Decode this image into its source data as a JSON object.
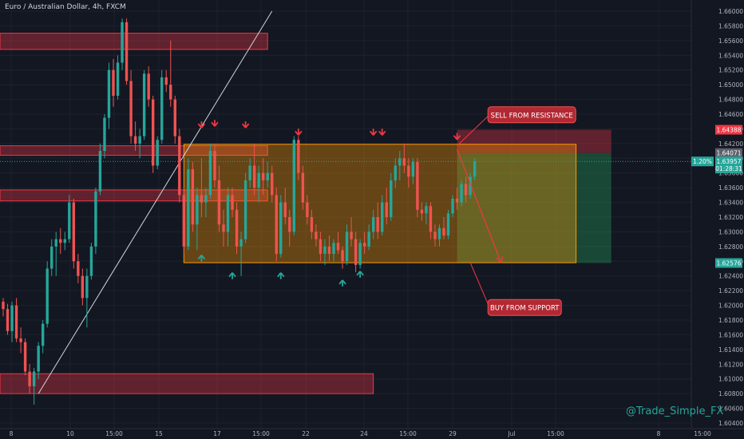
{
  "header": {
    "title": "Euro / Australian Dollar, 4h, FXCM"
  },
  "watermark": "@Trade_Simple_FX",
  "chart_data": {
    "type": "candlestick",
    "title": "Euro / Australian Dollar, 4h, FXCM",
    "ylim": [
      1.604,
      1.66
    ],
    "y_ticks": [
      "1.66000",
      "1.65800",
      "1.65600",
      "1.65400",
      "1.65200",
      "1.65000",
      "1.64800",
      "1.64600",
      "1.64400",
      "1.64200",
      "1.64000",
      "1.63800",
      "1.63600",
      "1.63400",
      "1.63200",
      "1.63000",
      "1.62800",
      "1.62600",
      "1.62400",
      "1.62200",
      "1.62000",
      "1.61800",
      "1.61600",
      "1.61400",
      "1.61200",
      "1.61000",
      "1.60800",
      "1.60600",
      "1.60400"
    ],
    "x_ticks": [
      "8",
      "10",
      "15:00",
      "15",
      "17",
      "15:00",
      "22",
      "24",
      "15:00",
      "29",
      "Jul",
      "15:00",
      "8",
      "15:00"
    ],
    "price_labels": [
      {
        "text": "1.64388",
        "price": 1.64388,
        "color": "#f23645"
      },
      {
        "text": "1.64071",
        "price": 1.64071,
        "color": "#5d606b"
      },
      {
        "text": "1.63957",
        "price": 1.63957,
        "color": "#26a69a"
      },
      {
        "text": "01:28:31",
        "price": 1.6386,
        "color": "#26a69a"
      },
      {
        "text": "1.62576",
        "price": 1.62576,
        "color": "#26a69a"
      }
    ],
    "pct_label": "1.20%",
    "zones": [
      {
        "name": "resistance-zone-top",
        "y1": 1.657,
        "y2": 1.6548,
        "x1": 0,
        "x2": 60
      },
      {
        "name": "resistance-zone-mid",
        "y1": 1.6417,
        "y2": 1.6404,
        "x1": 0,
        "x2": 60
      },
      {
        "name": "resistance-zone-low",
        "y1": 1.6357,
        "y2": 1.6342,
        "x1": 0,
        "x2": 60
      },
      {
        "name": "support-zone-bottom",
        "y1": 1.6107,
        "y2": 1.608,
        "x1": 0,
        "x2": 84
      }
    ],
    "range_box": {
      "y1": 1.6419,
      "y2": 1.6258,
      "x1": 41,
      "x2": 130
    },
    "trade": {
      "entry": 1.64071,
      "stop": 1.64388,
      "target": 1.62576,
      "x1": 103,
      "x2": 138
    },
    "annotations": [
      {
        "text": "SELL FROM RESISTANCE",
        "anchor_x": 103,
        "anchor_y": 1.6417,
        "box_x": 110,
        "box_y": 1.647
      },
      {
        "text": "BUY FROM SUPPORT",
        "anchor_x": 106,
        "anchor_y": 1.6258,
        "box_x": 110,
        "box_y": 1.6208
      }
    ],
    "down_arrows": [
      [
        45,
        1.6448
      ],
      [
        48,
        1.645
      ],
      [
        55,
        1.6448
      ],
      [
        67,
        1.6438
      ],
      [
        84,
        1.6438
      ],
      [
        86,
        1.6438
      ],
      [
        103,
        1.6432
      ]
    ],
    "up_arrows": [
      [
        45,
        1.6264
      ],
      [
        52,
        1.624
      ],
      [
        63,
        1.624
      ],
      [
        77,
        1.623
      ],
      [
        81,
        1.6242
      ]
    ],
    "trend_line": [
      [
        8,
        1.608
      ],
      [
        61,
        1.66
      ]
    ],
    "candles": [
      {
        "o": 1.6205,
        "h": 1.621,
        "l": 1.6185,
        "c": 1.6195
      },
      {
        "o": 1.6195,
        "h": 1.6202,
        "l": 1.616,
        "c": 1.6165
      },
      {
        "o": 1.6165,
        "h": 1.6205,
        "l": 1.615,
        "c": 1.62
      },
      {
        "o": 1.62,
        "h": 1.621,
        "l": 1.615,
        "c": 1.6155
      },
      {
        "o": 1.6155,
        "h": 1.617,
        "l": 1.6135,
        "c": 1.615
      },
      {
        "o": 1.615,
        "h": 1.6155,
        "l": 1.6105,
        "c": 1.611
      },
      {
        "o": 1.611,
        "h": 1.612,
        "l": 1.608,
        "c": 1.609
      },
      {
        "o": 1.609,
        "h": 1.6115,
        "l": 1.6065,
        "c": 1.611
      },
      {
        "o": 1.611,
        "h": 1.615,
        "l": 1.61,
        "c": 1.6145
      },
      {
        "o": 1.6145,
        "h": 1.618,
        "l": 1.6135,
        "c": 1.6175
      },
      {
        "o": 1.6175,
        "h": 1.626,
        "l": 1.617,
        "c": 1.625
      },
      {
        "o": 1.625,
        "h": 1.629,
        "l": 1.624,
        "c": 1.628
      },
      {
        "o": 1.628,
        "h": 1.63,
        "l": 1.624,
        "c": 1.629
      },
      {
        "o": 1.629,
        "h": 1.6305,
        "l": 1.627,
        "c": 1.6285
      },
      {
        "o": 1.6285,
        "h": 1.63,
        "l": 1.6275,
        "c": 1.629
      },
      {
        "o": 1.629,
        "h": 1.635,
        "l": 1.6285,
        "c": 1.634
      },
      {
        "o": 1.634,
        "h": 1.6345,
        "l": 1.625,
        "c": 1.626
      },
      {
        "o": 1.626,
        "h": 1.627,
        "l": 1.623,
        "c": 1.624
      },
      {
        "o": 1.624,
        "h": 1.625,
        "l": 1.62,
        "c": 1.621
      },
      {
        "o": 1.621,
        "h": 1.625,
        "l": 1.617,
        "c": 1.624
      },
      {
        "o": 1.624,
        "h": 1.6285,
        "l": 1.6235,
        "c": 1.628
      },
      {
        "o": 1.628,
        "h": 1.636,
        "l": 1.627,
        "c": 1.6355
      },
      {
        "o": 1.6355,
        "h": 1.642,
        "l": 1.635,
        "c": 1.641
      },
      {
        "o": 1.641,
        "h": 1.646,
        "l": 1.64,
        "c": 1.6455
      },
      {
        "o": 1.6455,
        "h": 1.653,
        "l": 1.644,
        "c": 1.652
      },
      {
        "o": 1.652,
        "h": 1.6535,
        "l": 1.647,
        "c": 1.6485
      },
      {
        "o": 1.6485,
        "h": 1.654,
        "l": 1.648,
        "c": 1.653
      },
      {
        "o": 1.653,
        "h": 1.659,
        "l": 1.652,
        "c": 1.6585
      },
      {
        "o": 1.6585,
        "h": 1.659,
        "l": 1.65,
        "c": 1.6505
      },
      {
        "o": 1.6505,
        "h": 1.652,
        "l": 1.642,
        "c": 1.643
      },
      {
        "o": 1.643,
        "h": 1.645,
        "l": 1.641,
        "c": 1.642
      },
      {
        "o": 1.642,
        "h": 1.644,
        "l": 1.64,
        "c": 1.643
      },
      {
        "o": 1.643,
        "h": 1.652,
        "l": 1.6425,
        "c": 1.6515
      },
      {
        "o": 1.6515,
        "h": 1.6525,
        "l": 1.647,
        "c": 1.648
      },
      {
        "o": 1.648,
        "h": 1.6485,
        "l": 1.638,
        "c": 1.639
      },
      {
        "o": 1.639,
        "h": 1.643,
        "l": 1.6385,
        "c": 1.6425
      },
      {
        "o": 1.6425,
        "h": 1.652,
        "l": 1.642,
        "c": 1.651
      },
      {
        "o": 1.651,
        "h": 1.652,
        "l": 1.649,
        "c": 1.65
      },
      {
        "o": 1.65,
        "h": 1.656,
        "l": 1.647,
        "c": 1.648
      },
      {
        "o": 1.648,
        "h": 1.6485,
        "l": 1.642,
        "c": 1.643
      },
      {
        "o": 1.643,
        "h": 1.644,
        "l": 1.634,
        "c": 1.635
      },
      {
        "o": 1.635,
        "h": 1.636,
        "l": 1.627,
        "c": 1.628
      },
      {
        "o": 1.628,
        "h": 1.64,
        "l": 1.6275,
        "c": 1.6385
      },
      {
        "o": 1.6385,
        "h": 1.6395,
        "l": 1.63,
        "c": 1.631
      },
      {
        "o": 1.631,
        "h": 1.636,
        "l": 1.6275,
        "c": 1.635
      },
      {
        "o": 1.635,
        "h": 1.64,
        "l": 1.632,
        "c": 1.634
      },
      {
        "o": 1.634,
        "h": 1.636,
        "l": 1.632,
        "c": 1.635
      },
      {
        "o": 1.635,
        "h": 1.642,
        "l": 1.6345,
        "c": 1.641
      },
      {
        "o": 1.641,
        "h": 1.642,
        "l": 1.636,
        "c": 1.637
      },
      {
        "o": 1.637,
        "h": 1.639,
        "l": 1.63,
        "c": 1.631
      },
      {
        "o": 1.631,
        "h": 1.633,
        "l": 1.628,
        "c": 1.63
      },
      {
        "o": 1.63,
        "h": 1.636,
        "l": 1.628,
        "c": 1.635
      },
      {
        "o": 1.635,
        "h": 1.636,
        "l": 1.632,
        "c": 1.633
      },
      {
        "o": 1.633,
        "h": 1.634,
        "l": 1.627,
        "c": 1.628
      },
      {
        "o": 1.628,
        "h": 1.63,
        "l": 1.624,
        "c": 1.629
      },
      {
        "o": 1.629,
        "h": 1.638,
        "l": 1.6285,
        "c": 1.637
      },
      {
        "o": 1.637,
        "h": 1.64,
        "l": 1.636,
        "c": 1.639
      },
      {
        "o": 1.639,
        "h": 1.642,
        "l": 1.635,
        "c": 1.636
      },
      {
        "o": 1.636,
        "h": 1.639,
        "l": 1.634,
        "c": 1.638
      },
      {
        "o": 1.638,
        "h": 1.64,
        "l": 1.635,
        "c": 1.637
      },
      {
        "o": 1.637,
        "h": 1.6395,
        "l": 1.636,
        "c": 1.638
      },
      {
        "o": 1.638,
        "h": 1.639,
        "l": 1.634,
        "c": 1.635
      },
      {
        "o": 1.635,
        "h": 1.636,
        "l": 1.626,
        "c": 1.627
      },
      {
        "o": 1.627,
        "h": 1.635,
        "l": 1.6265,
        "c": 1.634
      },
      {
        "o": 1.634,
        "h": 1.636,
        "l": 1.631,
        "c": 1.632
      },
      {
        "o": 1.632,
        "h": 1.633,
        "l": 1.628,
        "c": 1.63
      },
      {
        "o": 1.63,
        "h": 1.643,
        "l": 1.6295,
        "c": 1.6425
      },
      {
        "o": 1.6425,
        "h": 1.643,
        "l": 1.637,
        "c": 1.638
      },
      {
        "o": 1.638,
        "h": 1.639,
        "l": 1.633,
        "c": 1.634
      },
      {
        "o": 1.634,
        "h": 1.635,
        "l": 1.631,
        "c": 1.632
      },
      {
        "o": 1.632,
        "h": 1.633,
        "l": 1.629,
        "c": 1.63
      },
      {
        "o": 1.63,
        "h": 1.631,
        "l": 1.628,
        "c": 1.629
      },
      {
        "o": 1.629,
        "h": 1.63,
        "l": 1.626,
        "c": 1.627
      },
      {
        "o": 1.627,
        "h": 1.629,
        "l": 1.6255,
        "c": 1.628
      },
      {
        "o": 1.628,
        "h": 1.6295,
        "l": 1.626,
        "c": 1.627
      },
      {
        "o": 1.627,
        "h": 1.629,
        "l": 1.626,
        "c": 1.6285
      },
      {
        "o": 1.6285,
        "h": 1.63,
        "l": 1.627,
        "c": 1.6275
      },
      {
        "o": 1.6275,
        "h": 1.628,
        "l": 1.625,
        "c": 1.626
      },
      {
        "o": 1.626,
        "h": 1.631,
        "l": 1.6255,
        "c": 1.63
      },
      {
        "o": 1.63,
        "h": 1.632,
        "l": 1.628,
        "c": 1.629
      },
      {
        "o": 1.629,
        "h": 1.63,
        "l": 1.6245,
        "c": 1.6255
      },
      {
        "o": 1.6255,
        "h": 1.629,
        "l": 1.625,
        "c": 1.6285
      },
      {
        "o": 1.6285,
        "h": 1.63,
        "l": 1.627,
        "c": 1.628
      },
      {
        "o": 1.628,
        "h": 1.631,
        "l": 1.6275,
        "c": 1.63
      },
      {
        "o": 1.63,
        "h": 1.633,
        "l": 1.629,
        "c": 1.632
      },
      {
        "o": 1.632,
        "h": 1.634,
        "l": 1.629,
        "c": 1.63
      },
      {
        "o": 1.63,
        "h": 1.635,
        "l": 1.6295,
        "c": 1.634
      },
      {
        "o": 1.634,
        "h": 1.636,
        "l": 1.631,
        "c": 1.632
      },
      {
        "o": 1.632,
        "h": 1.638,
        "l": 1.6315,
        "c": 1.637
      },
      {
        "o": 1.637,
        "h": 1.64,
        "l": 1.636,
        "c": 1.639
      },
      {
        "o": 1.639,
        "h": 1.641,
        "l": 1.637,
        "c": 1.64
      },
      {
        "o": 1.64,
        "h": 1.642,
        "l": 1.638,
        "c": 1.639
      },
      {
        "o": 1.639,
        "h": 1.64,
        "l": 1.636,
        "c": 1.6375
      },
      {
        "o": 1.6375,
        "h": 1.64,
        "l": 1.6365,
        "c": 1.6395
      },
      {
        "o": 1.6395,
        "h": 1.64,
        "l": 1.632,
        "c": 1.633
      },
      {
        "o": 1.633,
        "h": 1.634,
        "l": 1.6315,
        "c": 1.6325
      },
      {
        "o": 1.6325,
        "h": 1.634,
        "l": 1.631,
        "c": 1.6335
      },
      {
        "o": 1.6335,
        "h": 1.634,
        "l": 1.629,
        "c": 1.63
      },
      {
        "o": 1.63,
        "h": 1.631,
        "l": 1.628,
        "c": 1.629
      },
      {
        "o": 1.629,
        "h": 1.631,
        "l": 1.628,
        "c": 1.6305
      },
      {
        "o": 1.6305,
        "h": 1.632,
        "l": 1.629,
        "c": 1.6295
      },
      {
        "o": 1.6295,
        "h": 1.633,
        "l": 1.629,
        "c": 1.6325
      },
      {
        "o": 1.6325,
        "h": 1.635,
        "l": 1.632,
        "c": 1.6345
      },
      {
        "o": 1.6345,
        "h": 1.636,
        "l": 1.633,
        "c": 1.634
      },
      {
        "o": 1.634,
        "h": 1.637,
        "l": 1.6335,
        "c": 1.6365
      },
      {
        "o": 1.6365,
        "h": 1.6375,
        "l": 1.634,
        "c": 1.635
      },
      {
        "o": 1.635,
        "h": 1.638,
        "l": 1.6345,
        "c": 1.6375
      },
      {
        "o": 1.6375,
        "h": 1.64,
        "l": 1.637,
        "c": 1.6396
      }
    ]
  }
}
